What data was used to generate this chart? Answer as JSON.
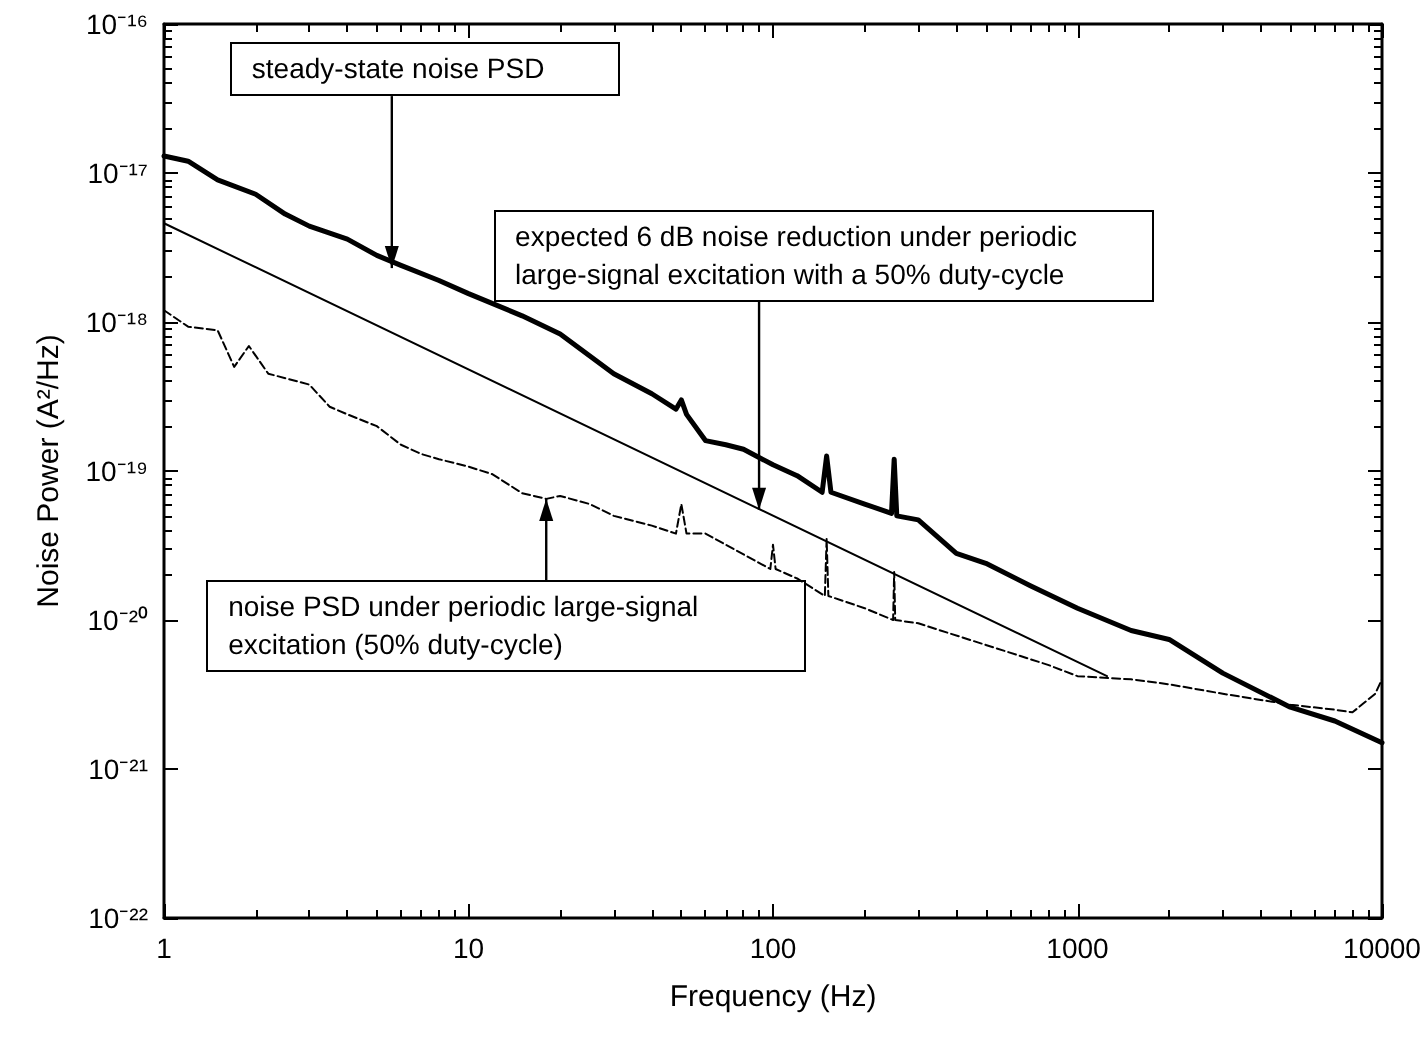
{
  "chart_data": {
    "type": "line",
    "xlabel": "Frequency (Hz)",
    "ylabel": "Noise Power (A²/Hz)",
    "log": "xy",
    "grid": false,
    "marker": "none",
    "xlim": [
      1,
      10000
    ],
    "xticks": [
      1,
      10,
      100,
      1000,
      10000
    ],
    "ylim": [
      1e-22,
      1e-16
    ],
    "yticks": [
      {
        "value": 1e-22,
        "label": "10⁻²²"
      },
      {
        "value": 1e-21,
        "label": "10⁻²¹"
      },
      {
        "value": 1e-20,
        "label": "10⁻²⁰"
      },
      {
        "value": 1e-19,
        "label": "10⁻¹⁹"
      },
      {
        "value": 1e-18,
        "label": "10⁻¹⁸"
      },
      {
        "value": 1e-17,
        "label": "10⁻¹⁷"
      },
      {
        "value": 1e-16,
        "label": "10⁻¹⁶"
      }
    ],
    "series": [
      {
        "color": "#000000",
        "line_style": "solid",
        "x": [
          1,
          1.2,
          1.5,
          2,
          2.5,
          3,
          4,
          5,
          6,
          8,
          10,
          15,
          20,
          30,
          40,
          48,
          50,
          52,
          60,
          70,
          80,
          100,
          120,
          145,
          150,
          155,
          200,
          245,
          250,
          255,
          300,
          400,
          500,
          700,
          1000,
          1500,
          2000,
          3000,
          5000,
          7000,
          10000
        ],
        "values": [
          1.3e-17,
          1.2e-17,
          9e-18,
          7.2e-18,
          5.3e-18,
          4.4e-18,
          3.6e-18,
          2.8e-18,
          2.4e-18,
          1.9e-18,
          1.55e-18,
          1.1e-18,
          8.3e-19,
          4.5e-19,
          3.3e-19,
          2.6e-19,
          3e-19,
          2.4e-19,
          1.6e-19,
          1.5e-19,
          1.4e-19,
          1.1e-19,
          9.3e-20,
          7.2e-20,
          1.26e-19,
          7.2e-20,
          6e-20,
          5.2e-20,
          1.2e-19,
          5e-20,
          4.7e-20,
          2.8e-20,
          2.4e-20,
          1.7e-20,
          1.2e-20,
          8.5e-21,
          7.4e-21,
          4.4e-21,
          2.6e-21,
          2.1e-21,
          1.5e-21
        ]
      },
      {
        "color": "#000000",
        "line_style": "solid",
        "x": [
          1,
          1250
        ],
        "values": [
          4.6e-18,
          4.2e-21
        ]
      },
      {
        "color": "#000000",
        "line_style": "dashed",
        "x": [
          1,
          1.2,
          1.5,
          1.7,
          1.9,
          2.2,
          3,
          3.5,
          4,
          5,
          6,
          7,
          8,
          10,
          12,
          15,
          18,
          20,
          25,
          30,
          40,
          48,
          50,
          52,
          60,
          70,
          98,
          100,
          102,
          120,
          148,
          150,
          152,
          200,
          248,
          250,
          252,
          300,
          500,
          800,
          1000,
          1500,
          2000,
          3000,
          5000,
          7000,
          8000,
          9500,
          10000
        ],
        "values": [
          1.2e-18,
          9.3e-19,
          8.8e-19,
          5e-19,
          6.9e-19,
          4.5e-19,
          3.8e-19,
          2.7e-19,
          2.4e-19,
          2e-19,
          1.5e-19,
          1.3e-19,
          1.2e-19,
          1.07e-19,
          9.5e-20,
          7.1e-20,
          6.5e-20,
          6.8e-20,
          6e-20,
          5e-20,
          4.3e-20,
          3.8e-20,
          6e-20,
          3.8e-20,
          3.8e-20,
          3.2e-20,
          2.2e-20,
          3.2e-20,
          2.2e-20,
          1.9e-20,
          1.45e-20,
          3.5e-20,
          1.45e-20,
          1.2e-20,
          1e-20,
          2.1e-20,
          1e-20,
          9.5e-21,
          6.8e-21,
          5e-21,
          4.2e-21,
          4e-21,
          3.7e-21,
          3.2e-21,
          2.7e-21,
          2.5e-21,
          2.4e-21,
          3.2e-21,
          4e-21
        ]
      }
    ],
    "annotations": [
      {
        "text": "steady-state noise PSD",
        "x": 5.6,
        "y": 2.3e-18
      },
      {
        "text": "expected 6 dB noise reduction under periodic large-signal excitation with a 50% duty-cycle",
        "x": 90,
        "y": 5.5e-20
      },
      {
        "text": "noise PSD under periodic large-signal excitation (50% duty-cycle)",
        "x": 18,
        "y": 6.5e-20
      }
    ]
  }
}
